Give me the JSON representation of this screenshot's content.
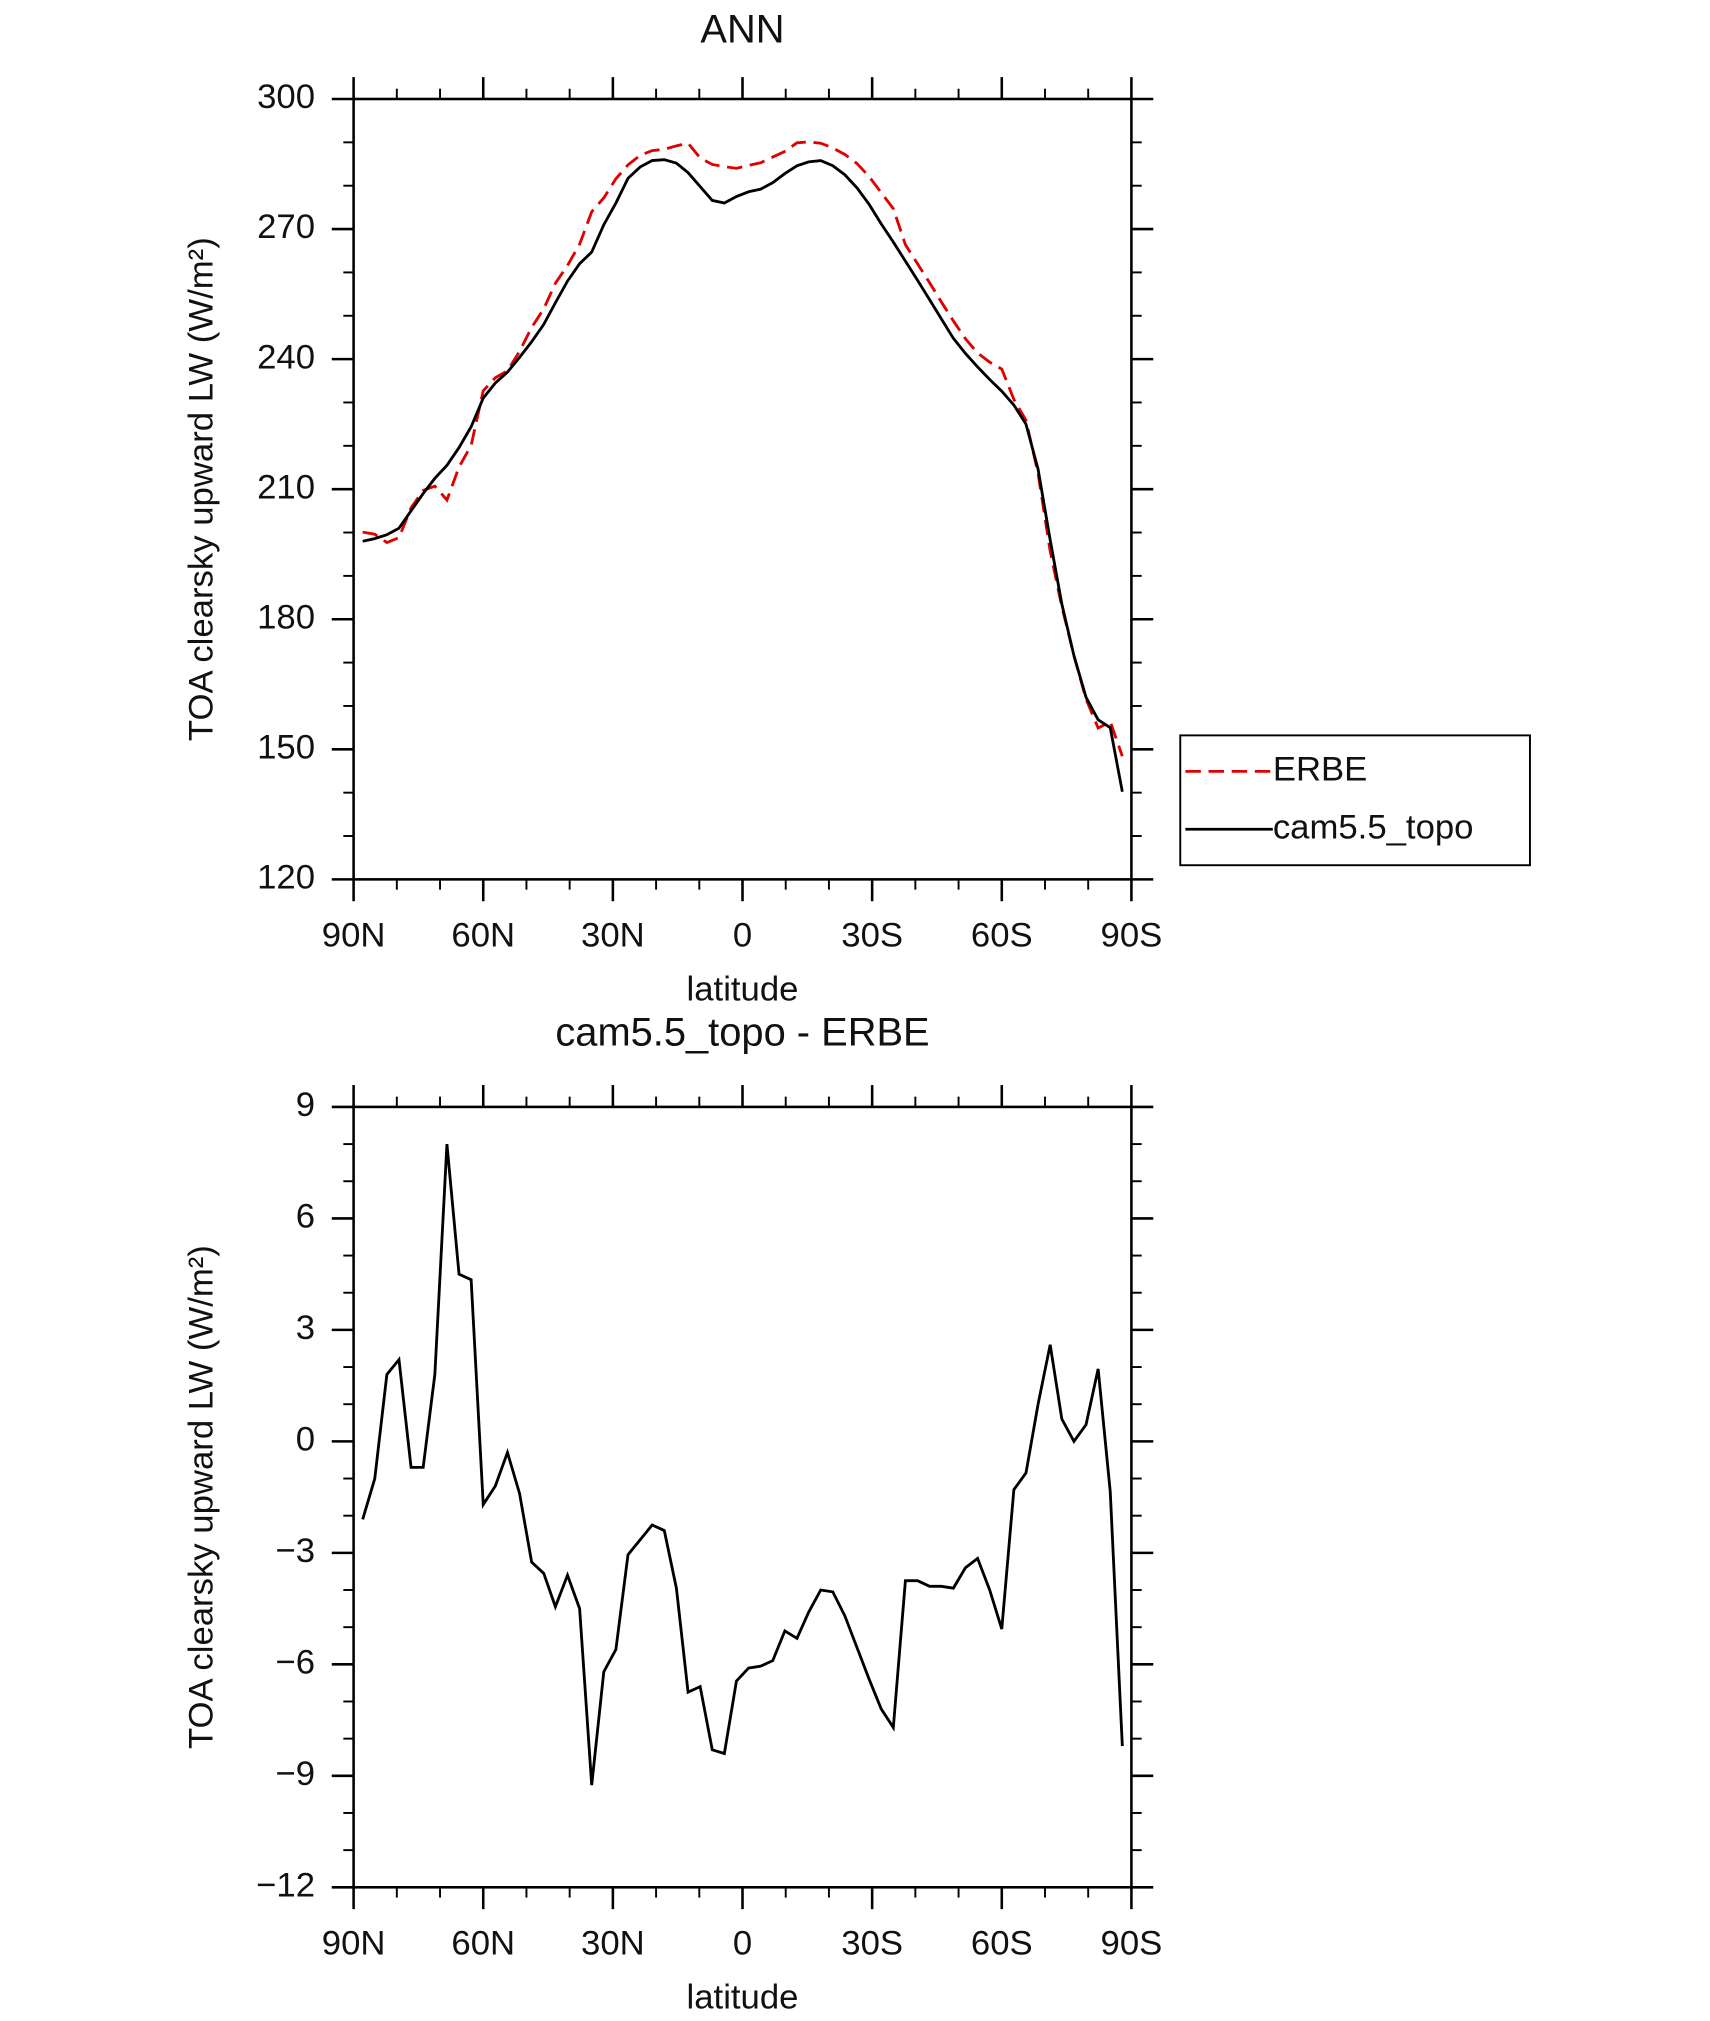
{
  "chart_data": [
    {
      "type": "line",
      "title": "ANN",
      "xlabel": "latitude",
      "ylabel": "TOA clearsky upward LW (W/m²)",
      "x": [
        87.9,
        85.1,
        82.3,
        79.5,
        76.7,
        73.9,
        71.2,
        68.4,
        65.6,
        62.8,
        60.0,
        57.2,
        54.4,
        51.6,
        48.8,
        46.0,
        43.3,
        40.5,
        37.7,
        34.9,
        32.1,
        29.3,
        26.5,
        23.7,
        20.9,
        18.1,
        15.3,
        12.6,
        9.8,
        7.0,
        4.2,
        1.4,
        -1.4,
        -4.2,
        -7.0,
        -9.8,
        -12.6,
        -15.3,
        -18.1,
        -20.9,
        -23.7,
        -26.5,
        -29.3,
        -32.1,
        -34.9,
        -37.7,
        -40.5,
        -43.3,
        -46.0,
        -48.8,
        -51.6,
        -54.4,
        -57.2,
        -60.0,
        -62.8,
        -65.6,
        -68.4,
        -71.2,
        -73.9,
        -76.7,
        -79.5,
        -82.3,
        -85.1,
        -87.9
      ],
      "series": [
        {
          "name": "ERBE",
          "color": "#e00000",
          "dash": true,
          "values": [
            200.1,
            199.6,
            197.7,
            198.8,
            205.7,
            209.7,
            210.7,
            207.5,
            215.1,
            220.1,
            232.7,
            235.7,
            237.3,
            241.8,
            247.3,
            251.6,
            257.5,
            261.6,
            266.5,
            274.0,
            277.2,
            281.6,
            284.8,
            287.0,
            288.1,
            288.4,
            289.2,
            289.8,
            286.4,
            284.9,
            284.4,
            284.0,
            284.7,
            285.3,
            286.6,
            287.9,
            289.9,
            290.1,
            289.8,
            288.7,
            287.2,
            285.1,
            282.1,
            278.4,
            274.7,
            266.4,
            262.0,
            257.6,
            253.2,
            248.8,
            244.7,
            241.4,
            239.3,
            237.7,
            230.7,
            225.9,
            213.6,
            195.7,
            182.9,
            171.6,
            161.6,
            154.9,
            156.4,
            148.4
          ]
        },
        {
          "name": "cam5.5_topo",
          "color": "#000000",
          "dash": false,
          "values": [
            198.0,
            198.6,
            199.5,
            201.0,
            205.0,
            209.0,
            212.5,
            215.5,
            219.6,
            224.4,
            231.0,
            234.5,
            237.0,
            240.4,
            244.0,
            248.0,
            253.0,
            258.0,
            262.0,
            264.7,
            271.0,
            276.0,
            281.7,
            284.3,
            285.8,
            286.0,
            285.2,
            283.0,
            279.8,
            276.6,
            276.0,
            277.5,
            278.6,
            279.2,
            280.7,
            282.8,
            284.6,
            285.5,
            285.8,
            284.6,
            282.5,
            279.5,
            275.7,
            271.2,
            267.0,
            262.6,
            258.2,
            253.7,
            249.3,
            244.8,
            241.3,
            238.2,
            235.3,
            232.6,
            229.4,
            225.0,
            214.6,
            198.3,
            183.5,
            171.6,
            162.0,
            156.8,
            155.0,
            140.2
          ]
        }
      ],
      "xlim": [
        90,
        -90
      ],
      "xticks": [
        {
          "value": 90,
          "label": "90N"
        },
        {
          "value": 60,
          "label": "60N"
        },
        {
          "value": 30,
          "label": "30N"
        },
        0,
        {
          "value": -30,
          "label": "30S"
        },
        {
          "value": -60,
          "label": "60S"
        },
        {
          "value": -90,
          "label": "90S"
        }
      ],
      "ylim": [
        120,
        300
      ],
      "yticks": [
        120,
        150,
        180,
        210,
        240,
        270,
        300
      ],
      "legend": "outside right"
    },
    {
      "type": "line",
      "title": "cam5.5_topo - ERBE",
      "xlabel": "latitude",
      "ylabel": "TOA clearsky upward LW (W/m²)",
      "x": [
        87.9,
        85.1,
        82.3,
        79.5,
        76.7,
        73.9,
        71.2,
        68.4,
        65.6,
        62.8,
        60.0,
        57.2,
        54.4,
        51.6,
        48.8,
        46.0,
        43.3,
        40.5,
        37.7,
        34.9,
        32.1,
        29.3,
        26.5,
        23.7,
        20.9,
        18.1,
        15.3,
        12.6,
        9.8,
        7.0,
        4.2,
        1.4,
        -1.4,
        -4.2,
        -7.0,
        -9.8,
        -12.6,
        -15.3,
        -18.1,
        -20.9,
        -23.7,
        -26.5,
        -29.3,
        -32.1,
        -34.9,
        -37.7,
        -40.5,
        -43.3,
        -46.0,
        -48.8,
        -51.6,
        -54.4,
        -57.2,
        -60.0,
        -62.8,
        -65.6,
        -68.4,
        -71.2,
        -73.9,
        -76.7,
        -79.5,
        -82.3,
        -85.1,
        -87.9
      ],
      "color": "#000000",
      "values": [
        -2.1,
        -1.0,
        1.8,
        2.2,
        -0.7,
        -0.7,
        1.8,
        8.0,
        4.5,
        4.35,
        -1.7,
        -1.2,
        -0.3,
        -1.4,
        -3.25,
        -3.55,
        -4.45,
        -3.6,
        -4.5,
        -9.25,
        -6.2,
        -5.6,
        -3.05,
        -2.65,
        -2.25,
        -2.4,
        -3.95,
        -6.75,
        -6.6,
        -8.3,
        -8.4,
        -6.45,
        -6.1,
        -6.05,
        -5.9,
        -5.1,
        -5.3,
        -4.6,
        -4.0,
        -4.05,
        -4.7,
        -5.55,
        -6.4,
        -7.2,
        -7.7,
        -3.75,
        -3.75,
        -3.9,
        -3.9,
        -3.95,
        -3.4,
        -3.15,
        -4.0,
        -5.05,
        -1.3,
        -0.85,
        1.0,
        2.6,
        0.6,
        0.0,
        0.45,
        1.95,
        -1.35,
        -8.2
      ],
      "xlim": [
        90,
        -90
      ],
      "xticks": [
        {
          "value": 90,
          "label": "90N"
        },
        {
          "value": 60,
          "label": "60N"
        },
        {
          "value": 30,
          "label": "30N"
        },
        0,
        {
          "value": -30,
          "label": "30S"
        },
        {
          "value": -60,
          "label": "60S"
        },
        {
          "value": -90,
          "label": "90S"
        }
      ],
      "ylim": [
        -12,
        9
      ],
      "yticks": [
        {
          "value": -12,
          "label": "−12"
        },
        {
          "value": -9,
          "label": "−9"
        },
        {
          "value": -6,
          "label": "−6"
        },
        {
          "value": -3,
          "label": "−3"
        },
        0,
        3,
        6,
        9
      ]
    }
  ]
}
